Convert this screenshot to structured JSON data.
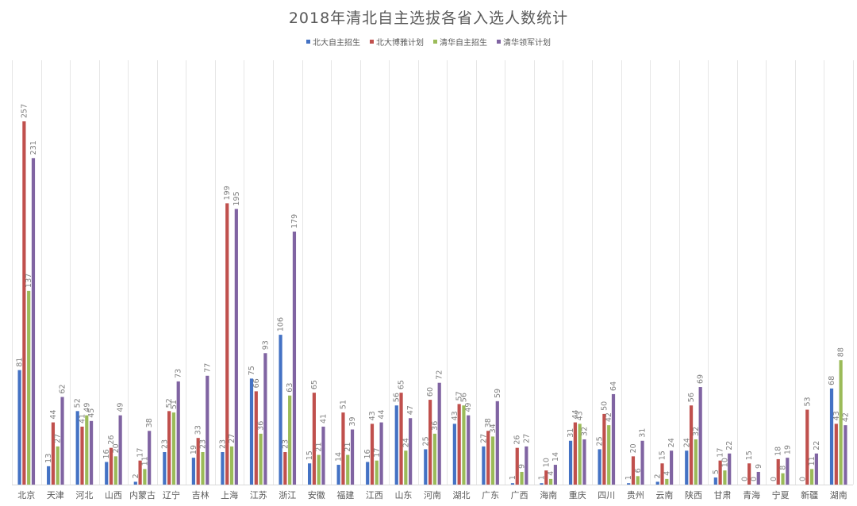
{
  "chart_data": {
    "type": "bar",
    "title": "2018年清北自主选拔各省入选人数统计",
    "legend_position": "top",
    "grid": true,
    "ylim": [
      0,
      257
    ],
    "categories": [
      "北京",
      "天津",
      "河北",
      "山西",
      "内蒙古",
      "辽宁",
      "吉林",
      "上海",
      "江苏",
      "浙江",
      "安徽",
      "福建",
      "江西",
      "山东",
      "河南",
      "湖北",
      "广东",
      "广西",
      "海南",
      "重庆",
      "四川",
      "贵州",
      "云南",
      "陕西",
      "甘肃",
      "青海",
      "宁夏",
      "新疆",
      "湖南"
    ],
    "series": [
      {
        "name": "北大自主招生",
        "color": "#4472C4",
        "values": [
          81,
          13,
          52,
          16,
          2,
          23,
          19,
          23,
          75,
          106,
          15,
          14,
          16,
          56,
          25,
          43,
          27,
          1,
          1,
          31,
          25,
          1,
          2,
          24,
          5,
          0,
          0,
          0,
          68
        ]
      },
      {
        "name": "北大博雅计划",
        "color": "#C0504D",
        "values": [
          257,
          44,
          41,
          26,
          17,
          52,
          33,
          199,
          66,
          23,
          65,
          51,
          43,
          65,
          60,
          57,
          38,
          26,
          10,
          44,
          50,
          20,
          15,
          56,
          17,
          15,
          18,
          53,
          43
        ]
      },
      {
        "name": "清华自主招生",
        "color": "#9BBB59",
        "values": [
          137,
          27,
          49,
          20,
          11,
          51,
          23,
          27,
          36,
          63,
          21,
          21,
          17,
          24,
          36,
          56,
          34,
          9,
          4,
          43,
          42,
          6,
          4,
          32,
          10,
          0,
          8,
          11,
          88
        ]
      },
      {
        "name": "清华领军计划",
        "color": "#8064A2",
        "values": [
          231,
          62,
          45,
          49,
          38,
          73,
          77,
          195,
          93,
          179,
          41,
          39,
          44,
          47,
          72,
          49,
          59,
          27,
          14,
          32,
          64,
          31,
          24,
          69,
          22,
          9,
          19,
          22,
          42
        ]
      }
    ]
  }
}
